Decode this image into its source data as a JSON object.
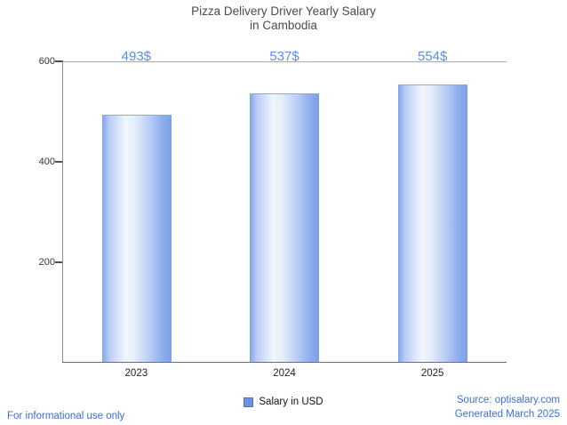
{
  "title": {
    "line1": "Pizza Delivery Driver Yearly Salary",
    "line2": "in Cambodia"
  },
  "chart_data": {
    "type": "bar",
    "categories": [
      "2023",
      "2024",
      "2025"
    ],
    "series": [
      {
        "name": "Salary in USD",
        "values": [
          493,
          537,
          554
        ]
      }
    ],
    "value_labels": [
      "493$",
      "537$",
      "554$"
    ],
    "title": "Pizza Delivery Driver Yearly Salary in Cambodia",
    "xlabel": "",
    "ylabel": "",
    "ylim": [
      0,
      600
    ],
    "yticks": [
      200,
      400,
      600
    ],
    "grid": "top-line-only",
    "legend_position": "bottom-center"
  },
  "legend": {
    "label": "Salary in USD",
    "swatch_color": "#6c93e0"
  },
  "footer": {
    "left": "For informational use only",
    "source": "Source: optisalary.com",
    "generated": "Generated March 2025"
  },
  "colors": {
    "value_label_text": "#5b8dd9",
    "footer_text": "#3a6fd8",
    "bar_edge": "#7b9fe8",
    "bar_center": "#f1f6fe",
    "axis": "#6e6e6e",
    "title_text": "#4a4a4a"
  }
}
